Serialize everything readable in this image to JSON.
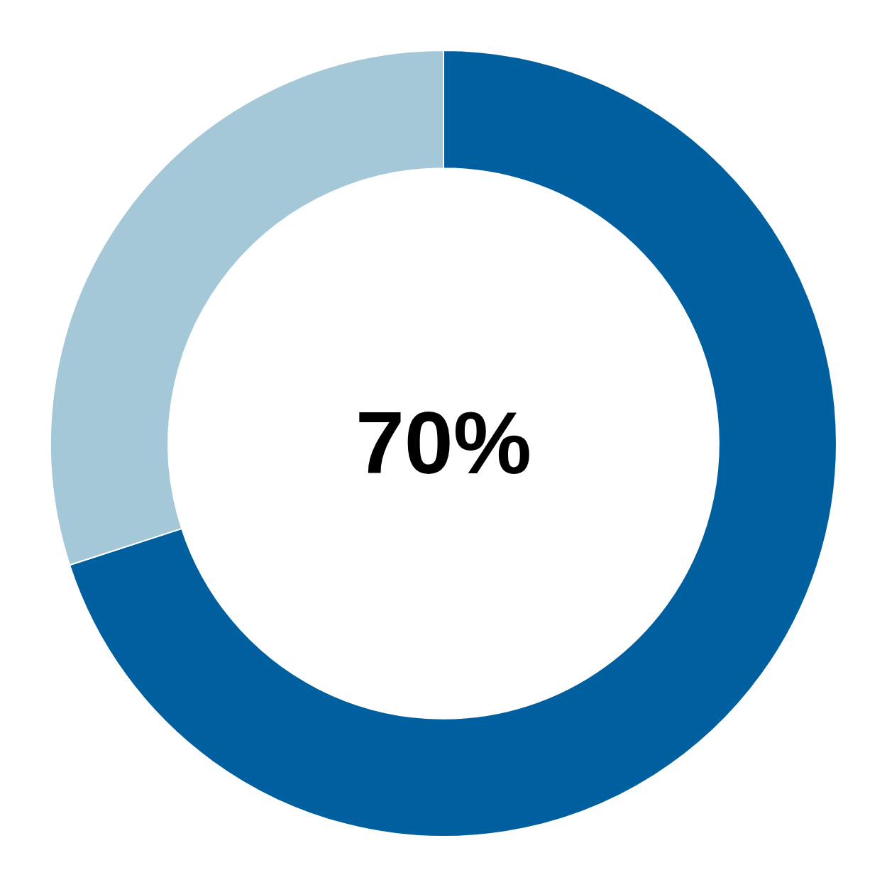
{
  "chart_data": {
    "type": "doughnut",
    "values": [
      70,
      30
    ],
    "colors": [
      "#005f9e",
      "#a5c8d8"
    ],
    "annotation": "70%",
    "legend": false
  }
}
